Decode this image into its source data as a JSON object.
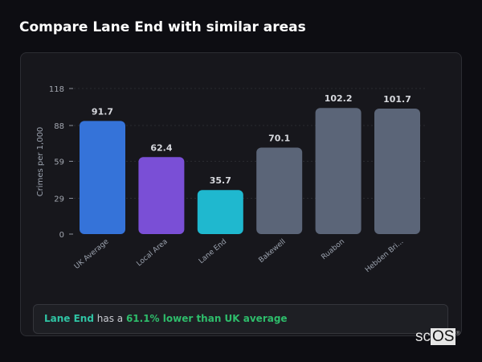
{
  "header": {
    "title": "Compare Lane End with similar areas"
  },
  "chart_data": {
    "type": "bar",
    "categories": [
      "UK Average",
      "Local Area",
      "Lane End",
      "Bakewell",
      "Ruabon",
      "Hebden Bri..."
    ],
    "values": [
      91.7,
      62.4,
      35.7,
      70.1,
      102.2,
      101.7
    ],
    "data_labels": [
      "91.7",
      "62.4",
      "35.7",
      "70.1",
      "102.2",
      "101.7"
    ],
    "colors": [
      "#3573d9",
      "#7a4fd6",
      "#1fb8cf",
      "#5b6578",
      "#5b6578",
      "#5b6578"
    ],
    "ylabel": "Crimes per 1,000",
    "xlabel": "",
    "yticks": [
      0,
      29,
      59,
      88,
      118
    ],
    "ylim": [
      0,
      118
    ],
    "grid": true
  },
  "summary": {
    "place": "Lane End",
    "middle": " has a ",
    "stat": "61.1% lower than UK average"
  },
  "watermark": {
    "text_a": "sc",
    "text_b": "OS",
    "mark": "®"
  }
}
